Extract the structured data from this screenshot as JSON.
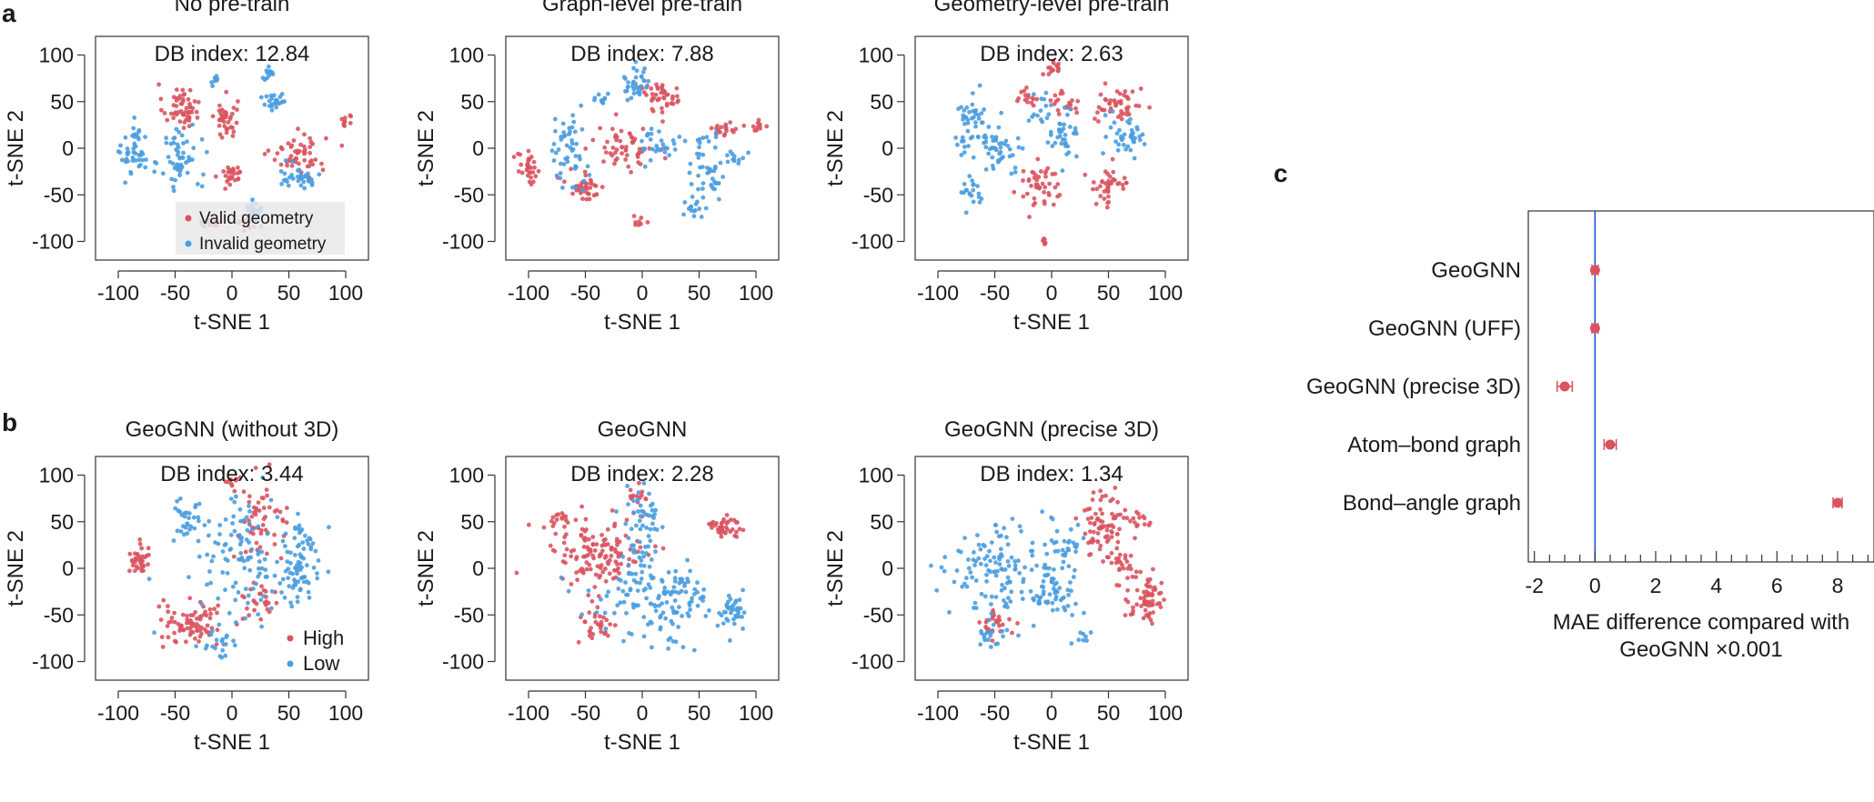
{
  "colors": {
    "red": "#d9545f",
    "blue": "#4a9de0",
    "refline": "#2050d8"
  },
  "panel_labels": {
    "a": "a",
    "b": "b",
    "c": "c"
  },
  "chart_data": [
    {
      "id": "a1",
      "panel": "a",
      "type": "scatter",
      "title": "No pre-train",
      "annotation": "DB index: 12.84",
      "xlabel": "t-SNE 1",
      "ylabel": "t-SNE 2",
      "xlim": [
        -120,
        120
      ],
      "ylim": [
        -120,
        120
      ],
      "xticks": [
        -100,
        -50,
        0,
        50,
        100
      ],
      "yticks": [
        -100,
        -50,
        0,
        50,
        100
      ],
      "legend": {
        "position": "bottom-center",
        "entries": [
          {
            "label": "Valid geometry",
            "color": "#d9545f"
          },
          {
            "label": "Invalid geometry",
            "color": "#4a9de0"
          }
        ]
      },
      "clusters": [
        {
          "color": "red",
          "cx": -45,
          "cy": 45,
          "sx": 8,
          "sy": 12,
          "n": 55
        },
        {
          "color": "red",
          "cx": -5,
          "cy": 30,
          "sx": 5,
          "sy": 12,
          "n": 40
        },
        {
          "color": "red",
          "cx": 58,
          "cy": -5,
          "sx": 12,
          "sy": 10,
          "n": 55
        },
        {
          "color": "red",
          "cx": 0,
          "cy": -28,
          "sx": 5,
          "sy": 6,
          "n": 25
        },
        {
          "color": "red",
          "cx": 100,
          "cy": 30,
          "sx": 3,
          "sy": 4,
          "n": 10
        },
        {
          "color": "red",
          "cx": -20,
          "cy": -80,
          "sx": 6,
          "sy": 3,
          "n": 15
        },
        {
          "color": "red",
          "cx": 15,
          "cy": -80,
          "sx": 6,
          "sy": 4,
          "n": 14
        },
        {
          "color": "blue",
          "cx": -85,
          "cy": -5,
          "sx": 6,
          "sy": 14,
          "n": 45
        },
        {
          "color": "blue",
          "cx": -45,
          "cy": -10,
          "sx": 9,
          "sy": 18,
          "n": 55
        },
        {
          "color": "blue",
          "cx": 38,
          "cy": 50,
          "sx": 5,
          "sy": 6,
          "n": 25
        },
        {
          "color": "blue",
          "cx": 32,
          "cy": 80,
          "sx": 3,
          "sy": 4,
          "n": 12
        },
        {
          "color": "blue",
          "cx": -15,
          "cy": 72,
          "sx": 3,
          "sy": 3,
          "n": 8
        },
        {
          "color": "blue",
          "cx": 58,
          "cy": -30,
          "sx": 10,
          "sy": 6,
          "n": 35
        },
        {
          "color": "blue",
          "cx": 22,
          "cy": -65,
          "sx": 5,
          "sy": 5,
          "n": 18
        }
      ]
    },
    {
      "id": "a2",
      "panel": "a",
      "type": "scatter",
      "title": "Graph-level pre-train",
      "annotation": "DB index: 7.88",
      "xlabel": "t-SNE 1",
      "ylabel": "t-SNE 2",
      "xlim": [
        -120,
        120
      ],
      "ylim": [
        -120,
        120
      ],
      "xticks": [
        -100,
        -50,
        0,
        50,
        100
      ],
      "yticks": [
        -100,
        -50,
        0,
        50,
        100
      ],
      "clusters": [
        {
          "color": "red",
          "cx": -100,
          "cy": -25,
          "sx": 5,
          "sy": 10,
          "n": 30
        },
        {
          "color": "red",
          "cx": -50,
          "cy": -40,
          "sx": 9,
          "sy": 8,
          "n": 40
        },
        {
          "color": "red",
          "cx": -15,
          "cy": 0,
          "sx": 12,
          "sy": 12,
          "n": 55
        },
        {
          "color": "red",
          "cx": 20,
          "cy": 55,
          "sx": 10,
          "sy": 8,
          "n": 35
        },
        {
          "color": "red",
          "cx": 72,
          "cy": 20,
          "sx": 6,
          "sy": 4,
          "n": 20
        },
        {
          "color": "red",
          "cx": 102,
          "cy": 25,
          "sx": 4,
          "sy": 3,
          "n": 10
        },
        {
          "color": "red",
          "cx": -2,
          "cy": -78,
          "sx": 4,
          "sy": 4,
          "n": 8
        },
        {
          "color": "red",
          "cx": 5,
          "cy": 58,
          "sx": 4,
          "sy": 4,
          "n": 8
        },
        {
          "color": "blue",
          "cx": -65,
          "cy": -5,
          "sx": 8,
          "sy": 20,
          "n": 50
        },
        {
          "color": "blue",
          "cx": -5,
          "cy": 70,
          "sx": 6,
          "sy": 10,
          "n": 35
        },
        {
          "color": "blue",
          "cx": 15,
          "cy": 5,
          "sx": 8,
          "sy": 10,
          "n": 30
        },
        {
          "color": "blue",
          "cx": 58,
          "cy": -20,
          "sx": 8,
          "sy": 18,
          "n": 45
        },
        {
          "color": "blue",
          "cx": 82,
          "cy": -10,
          "sx": 5,
          "sy": 5,
          "n": 12
        },
        {
          "color": "blue",
          "cx": -35,
          "cy": 55,
          "sx": 5,
          "sy": 4,
          "n": 10
        },
        {
          "color": "blue",
          "cx": 45,
          "cy": -65,
          "sx": 6,
          "sy": 5,
          "n": 15
        }
      ]
    },
    {
      "id": "a3",
      "panel": "a",
      "type": "scatter",
      "title": "Geometry-level pre-train",
      "annotation": "DB index: 2.63",
      "xlabel": "t-SNE 1",
      "ylabel": "t-SNE 2",
      "xlim": [
        -120,
        120
      ],
      "ylim": [
        -120,
        120
      ],
      "xticks": [
        -100,
        -50,
        0,
        50,
        100
      ],
      "yticks": [
        -100,
        -50,
        0,
        50,
        100
      ],
      "clusters": [
        {
          "color": "red",
          "cx": -10,
          "cy": -40,
          "sx": 10,
          "sy": 12,
          "n": 45
        },
        {
          "color": "red",
          "cx": 50,
          "cy": -40,
          "sx": 10,
          "sy": 10,
          "n": 40
        },
        {
          "color": "red",
          "cx": 60,
          "cy": 45,
          "sx": 10,
          "sy": 10,
          "n": 45
        },
        {
          "color": "red",
          "cx": 0,
          "cy": 85,
          "sx": 4,
          "sy": 5,
          "n": 15
        },
        {
          "color": "red",
          "cx": -20,
          "cy": 55,
          "sx": 5,
          "sy": 6,
          "n": 15
        },
        {
          "color": "red",
          "cx": 5,
          "cy": 50,
          "sx": 4,
          "sy": 5,
          "n": 12
        },
        {
          "color": "red",
          "cx": 15,
          "cy": 45,
          "sx": 4,
          "sy": 3,
          "n": 8
        },
        {
          "color": "red",
          "cx": -5,
          "cy": -100,
          "sx": 3,
          "sy": 3,
          "n": 6
        },
        {
          "color": "blue",
          "cx": -70,
          "cy": 20,
          "sx": 10,
          "sy": 20,
          "n": 55
        },
        {
          "color": "blue",
          "cx": -40,
          "cy": 0,
          "sx": 8,
          "sy": 10,
          "n": 35
        },
        {
          "color": "blue",
          "cx": 10,
          "cy": 10,
          "sx": 6,
          "sy": 15,
          "n": 35
        },
        {
          "color": "blue",
          "cx": 65,
          "cy": 15,
          "sx": 8,
          "sy": 12,
          "n": 40
        },
        {
          "color": "blue",
          "cx": -70,
          "cy": -45,
          "sx": 6,
          "sy": 10,
          "n": 20
        },
        {
          "color": "blue",
          "cx": -10,
          "cy": 40,
          "sx": 5,
          "sy": 8,
          "n": 15
        }
      ]
    },
    {
      "id": "b1",
      "panel": "b",
      "type": "scatter",
      "title": "GeoGNN (without 3D)",
      "annotation": "DB index: 3.44",
      "xlabel": "t-SNE 1",
      "ylabel": "t-SNE 2",
      "xlim": [
        -120,
        120
      ],
      "ylim": [
        -120,
        120
      ],
      "xticks": [
        -100,
        -50,
        0,
        50,
        100
      ],
      "yticks": [
        -100,
        -50,
        0,
        50,
        100
      ],
      "legend": {
        "position": "bottom-right",
        "entries": [
          {
            "label": "High",
            "color": "#d9545f"
          },
          {
            "label": "Low",
            "color": "#4a9de0"
          }
        ]
      },
      "clusters": [
        {
          "color": "red",
          "cx": -80,
          "cy": 10,
          "sx": 5,
          "sy": 8,
          "n": 35
        },
        {
          "color": "red",
          "cx": -35,
          "cy": -60,
          "sx": 15,
          "sy": 12,
          "n": 80
        },
        {
          "color": "red",
          "cx": 25,
          "cy": 45,
          "sx": 12,
          "sy": 20,
          "n": 55
        },
        {
          "color": "red",
          "cx": 0,
          "cy": 95,
          "sx": 4,
          "sy": 4,
          "n": 10
        },
        {
          "color": "red",
          "cx": 25,
          "cy": -40,
          "sx": 8,
          "sy": 10,
          "n": 25
        },
        {
          "color": "blue",
          "cx": -40,
          "cy": 55,
          "sx": 8,
          "sy": 12,
          "n": 30
        },
        {
          "color": "blue",
          "cx": 10,
          "cy": 15,
          "sx": 20,
          "sy": 30,
          "n": 100
        },
        {
          "color": "blue",
          "cx": 55,
          "cy": -10,
          "sx": 12,
          "sy": 15,
          "n": 60
        },
        {
          "color": "blue",
          "cx": -10,
          "cy": -80,
          "sx": 8,
          "sy": 8,
          "n": 20
        },
        {
          "color": "blue",
          "cx": 60,
          "cy": 30,
          "sx": 8,
          "sy": 10,
          "n": 25
        }
      ]
    },
    {
      "id": "b2",
      "panel": "b",
      "type": "scatter",
      "title": "GeoGNN",
      "annotation": "DB index: 2.28",
      "xlabel": "t-SNE 1",
      "ylabel": "t-SNE 2",
      "xlim": [
        -120,
        120
      ],
      "ylim": [
        -120,
        120
      ],
      "xticks": [
        -100,
        -50,
        0,
        50,
        100
      ],
      "yticks": [
        -100,
        -50,
        0,
        50,
        100
      ],
      "clusters": [
        {
          "color": "red",
          "cx": -40,
          "cy": 15,
          "sx": 22,
          "sy": 20,
          "n": 130
        },
        {
          "color": "red",
          "cx": 70,
          "cy": 45,
          "sx": 8,
          "sy": 7,
          "n": 40
        },
        {
          "color": "red",
          "cx": -40,
          "cy": -60,
          "sx": 8,
          "sy": 12,
          "n": 30
        },
        {
          "color": "red",
          "cx": -70,
          "cy": 50,
          "sx": 6,
          "sy": 5,
          "n": 15
        },
        {
          "color": "red",
          "cx": -5,
          "cy": 70,
          "sx": 5,
          "sy": 10,
          "n": 15
        },
        {
          "color": "blue",
          "cx": 0,
          "cy": 40,
          "sx": 10,
          "sy": 30,
          "n": 60
        },
        {
          "color": "blue",
          "cx": 10,
          "cy": -30,
          "sx": 30,
          "sy": 15,
          "n": 120
        },
        {
          "color": "blue",
          "cx": 80,
          "cy": -45,
          "sx": 6,
          "sy": 10,
          "n": 35
        },
        {
          "color": "blue",
          "cx": 20,
          "cy": -70,
          "sx": 12,
          "sy": 8,
          "n": 20
        }
      ]
    },
    {
      "id": "b3",
      "panel": "b",
      "type": "scatter",
      "title": "GeoGNN (precise 3D)",
      "annotation": "DB index: 1.34",
      "xlabel": "t-SNE 1",
      "ylabel": "t-SNE 2",
      "xlim": [
        -120,
        120
      ],
      "ylim": [
        -120,
        120
      ],
      "xticks": [
        -100,
        -50,
        0,
        50,
        100
      ],
      "yticks": [
        -100,
        -50,
        0,
        50,
        100
      ],
      "clusters": [
        {
          "color": "red",
          "cx": 45,
          "cy": 45,
          "sx": 12,
          "sy": 20,
          "n": 80
        },
        {
          "color": "red",
          "cx": 85,
          "cy": -35,
          "sx": 8,
          "sy": 12,
          "n": 60
        },
        {
          "color": "red",
          "cx": 65,
          "cy": 0,
          "sx": 8,
          "sy": 10,
          "n": 25
        },
        {
          "color": "red",
          "cx": -45,
          "cy": -60,
          "sx": 8,
          "sy": 8,
          "n": 25
        },
        {
          "color": "red",
          "cx": 80,
          "cy": 50,
          "sx": 4,
          "sy": 4,
          "n": 10
        },
        {
          "color": "blue",
          "cx": -50,
          "cy": 0,
          "sx": 22,
          "sy": 22,
          "n": 120
        },
        {
          "color": "blue",
          "cx": 0,
          "cy": -25,
          "sx": 12,
          "sy": 15,
          "n": 50
        },
        {
          "color": "blue",
          "cx": -50,
          "cy": -70,
          "sx": 8,
          "sy": 6,
          "n": 20
        },
        {
          "color": "blue",
          "cx": 15,
          "cy": 25,
          "sx": 8,
          "sy": 15,
          "n": 30
        },
        {
          "color": "blue",
          "cx": 25,
          "cy": -75,
          "sx": 4,
          "sy": 4,
          "n": 8
        }
      ]
    },
    {
      "id": "c",
      "panel": "c",
      "type": "dot-errorbar",
      "orientation": "horizontal",
      "categories": [
        "GeoGNN",
        "GeoGNN (UFF)",
        "GeoGNN (precise 3D)",
        "Atom–bond graph",
        "Bond–angle graph"
      ],
      "values": [
        0,
        0,
        -1,
        0.5,
        8
      ],
      "errors": [
        0.1,
        0.1,
        0.25,
        0.2,
        0.15
      ],
      "xlim": [
        -2.2,
        9.2
      ],
      "xticks": [
        -2,
        0,
        2,
        4,
        6,
        8
      ],
      "reference_line": 0,
      "xlabel_line1": "MAE difference compared with",
      "xlabel_line2": "GeoGNN  ×0.001"
    }
  ]
}
